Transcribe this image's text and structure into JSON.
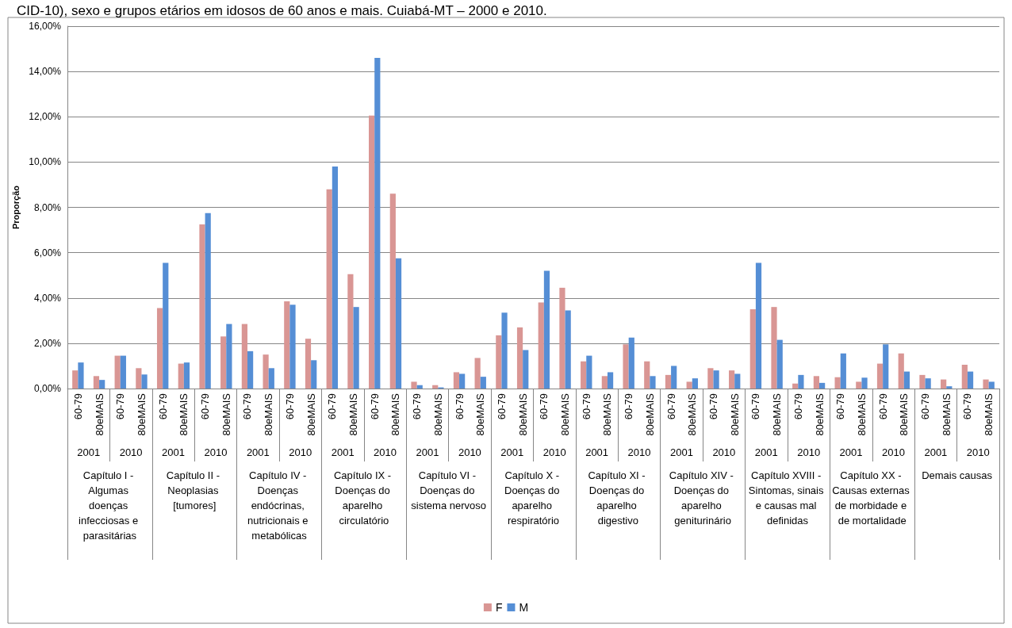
{
  "chart_data": {
    "type": "bar",
    "title": "CID-10), sexo e grupos etários em idosos de 60 anos e mais. Cuiabá-MT – 2000 e 2010.",
    "ylabel": "Proporção",
    "categories": [
      "60-79",
      "80eMAIS",
      "60-79",
      "80eMAIS",
      "60-79",
      "80eMAIS",
      "60-79",
      "80eMAIS",
      "60-79",
      "80eMAIS",
      "60-79",
      "80eMAIS",
      "60-79",
      "80eMAIS",
      "60-79",
      "80eMAIS",
      "60-79",
      "80eMAIS",
      "60-79",
      "80eMAIS",
      "60-79",
      "80eMAIS",
      "60-79",
      "80eMAIS",
      "60-79",
      "80eMAIS",
      "60-79",
      "80eMAIS",
      "60-79",
      "80eMAIS",
      "60-79",
      "80eMAIS",
      "60-79",
      "80eMAIS",
      "60-79",
      "80eMAIS",
      "60-79",
      "80eMAIS",
      "60-79",
      "80eMAIS",
      "60-79",
      "80eMAIS",
      "60-79",
      "80eMAIS"
    ],
    "series": [
      {
        "name": "F",
        "color": "#d99694",
        "values": [
          0.8,
          0.55,
          1.45,
          0.9,
          3.55,
          1.1,
          7.25,
          2.3,
          2.85,
          1.5,
          3.85,
          2.2,
          8.8,
          5.05,
          12.05,
          8.6,
          0.3,
          0.15,
          0.72,
          1.35,
          2.35,
          2.7,
          3.8,
          4.45,
          1.2,
          0.55,
          1.95,
          1.2,
          0.6,
          0.3,
          0.9,
          0.8,
          3.5,
          3.6,
          0.22,
          0.55,
          0.5,
          0.3,
          1.1,
          1.55,
          0.6,
          0.4,
          1.05,
          0.4
        ]
      },
      {
        "name": "M",
        "color": "#558ed5",
        "values": [
          1.15,
          0.38,
          1.45,
          0.62,
          5.55,
          1.15,
          7.75,
          2.85,
          1.65,
          0.9,
          3.7,
          1.25,
          9.8,
          3.6,
          14.6,
          5.75,
          0.15,
          0.05,
          0.65,
          0.52,
          3.35,
          1.7,
          5.2,
          3.45,
          1.45,
          0.72,
          2.25,
          0.55,
          1.0,
          0.45,
          0.8,
          0.65,
          5.55,
          2.15,
          0.6,
          0.25,
          1.55,
          0.48,
          1.95,
          0.75,
          0.45,
          0.1,
          0.75,
          0.3
        ]
      }
    ],
    "annotations": [
      "2001",
      "2010",
      "2001",
      "2010",
      "2001",
      "2010",
      "2001",
      "2010",
      "2001",
      "2010",
      "2001",
      "2010",
      "2001",
      "2010",
      "2001",
      "2010",
      "2001",
      "2010",
      "2001",
      "2010",
      "2001",
      "2010",
      "Capítulo I - Algumas doenças infecciosas e parasitárias",
      "Capítulo II - Neoplasias [tumores]",
      "Capítulo IV - Doenças endócrinas, nutricionais e metabólicas",
      "Capítulo IX - Doenças do aparelho circulatório",
      "Capítulo VI - Doenças do sistema nervoso",
      "Capítulo X - Doenças do aparelho respiratório",
      "Capítulo XI - Doenças do aparelho digestivo",
      "Capítulo XIV - Doenças do aparelho geniturinário",
      "Capítulo XVIII - Sintomas, sinais e causas mal definidas",
      "Capítulo XX - Causas externas de morbidade e de mortalidade",
      "Demais causas"
    ],
    "ylim": [
      0,
      16
    ],
    "yticks": [
      {
        "value": 0,
        "label": "0,00%"
      },
      {
        "value": 2,
        "label": "2,00%"
      },
      {
        "value": 4,
        "label": "4,00%"
      },
      {
        "value": 6,
        "label": "6,00%"
      },
      {
        "value": 8,
        "label": "8,00%"
      },
      {
        "value": 10,
        "label": "10,00%"
      },
      {
        "value": 12,
        "label": "12,00%"
      },
      {
        "value": 14,
        "label": "14,00%"
      },
      {
        "value": 16,
        "label": "16,00%"
      }
    ],
    "grid": "y",
    "legend": "bottom"
  }
}
